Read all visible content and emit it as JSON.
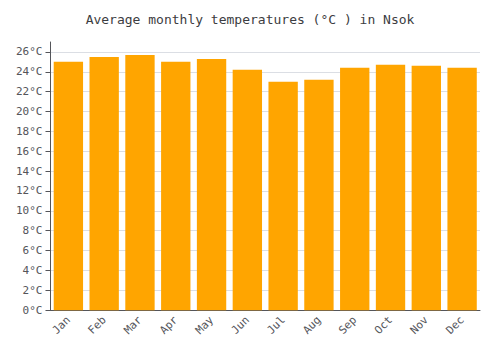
{
  "chart_data": {
    "type": "bar",
    "title": "Average monthly temperatures (°C ) in Nsok",
    "categories": [
      "Jan",
      "Feb",
      "Mar",
      "Apr",
      "May",
      "Jun",
      "Jul",
      "Aug",
      "Sep",
      "Oct",
      "Nov",
      "Dec"
    ],
    "values": [
      25.0,
      25.5,
      25.7,
      25.0,
      25.3,
      24.2,
      23.0,
      23.2,
      24.4,
      24.7,
      24.6,
      24.4
    ],
    "color": "#FFA500",
    "ylim": [
      0,
      27
    ],
    "yticks": [
      {
        "value": 0,
        "label": "0°C"
      },
      {
        "value": 2,
        "label": "2°C"
      },
      {
        "value": 4,
        "label": "4°C"
      },
      {
        "value": 6,
        "label": "6°C"
      },
      {
        "value": 8,
        "label": "8°C"
      },
      {
        "value": 10,
        "label": "10°C"
      },
      {
        "value": 12,
        "label": "12°C"
      },
      {
        "value": 14,
        "label": "14°C"
      },
      {
        "value": 16,
        "label": "16°C"
      },
      {
        "value": 18,
        "label": "18°C"
      },
      {
        "value": 20,
        "label": "20°C"
      },
      {
        "value": 22,
        "label": "22°C"
      },
      {
        "value": 24,
        "label": "24°C"
      },
      {
        "value": 26,
        "label": "26°C"
      }
    ],
    "grid": true
  }
}
